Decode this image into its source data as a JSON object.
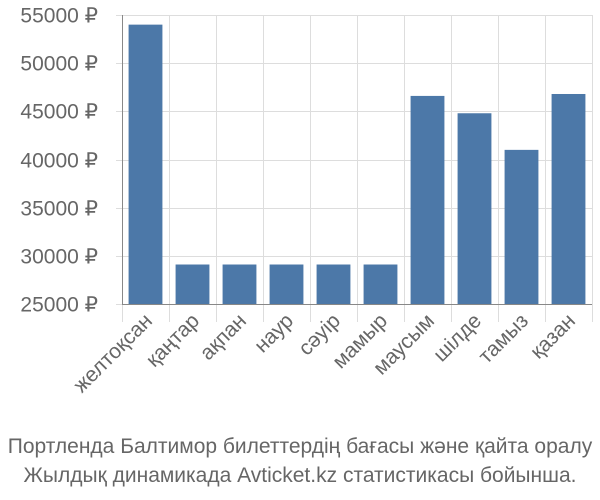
{
  "chart_data": {
    "type": "bar",
    "categories": [
      "желтоқсан",
      "қаңтар",
      "ақпан",
      "наур",
      "сәуір",
      "мамыр",
      "маусым",
      "шілде",
      "тамыз",
      "қазан"
    ],
    "values": [
      54000,
      29100,
      29100,
      29100,
      29100,
      29100,
      46600,
      44800,
      41000,
      46800
    ],
    "ylim": [
      25000,
      55000
    ],
    "yticks": [
      25000,
      30000,
      35000,
      40000,
      45000,
      50000,
      55000
    ],
    "ytick_labels": [
      "25000 ₽",
      "30000 ₽",
      "35000 ₽",
      "40000 ₽",
      "45000 ₽",
      "50000 ₽",
      "55000 ₽"
    ],
    "grid": true,
    "bar_color": "#4c78a8"
  },
  "caption": {
    "line1": "Портленда Балтимор билеттердің бағасы және қайта оралу",
    "line2": "Жылдық динамикада Avticket.kz статистикасы бойынша."
  }
}
